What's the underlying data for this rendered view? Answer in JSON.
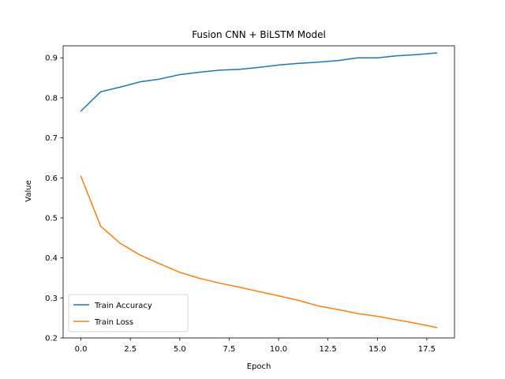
{
  "chart_data": {
    "type": "line",
    "title": "Fusion CNN + BiLSTM Model",
    "xlabel": "Epoch",
    "ylabel": "Value",
    "xlim": [
      -0.9,
      18.9
    ],
    "ylim": [
      0.2,
      0.93
    ],
    "xticks": [
      0.0,
      2.5,
      5.0,
      7.5,
      10.0,
      12.5,
      15.0,
      17.5
    ],
    "xtick_labels": [
      "0.0",
      "2.5",
      "5.0",
      "7.5",
      "10.0",
      "12.5",
      "15.0",
      "17.5"
    ],
    "yticks": [
      0.2,
      0.3,
      0.4,
      0.5,
      0.6,
      0.7,
      0.8,
      0.9
    ],
    "ytick_labels": [
      "0.2",
      "0.3",
      "0.4",
      "0.5",
      "0.6",
      "0.7",
      "0.8",
      "0.9"
    ],
    "grid": false,
    "legend_position": "lower-left",
    "x": [
      0,
      1,
      2,
      3,
      4,
      5,
      6,
      7,
      8,
      9,
      10,
      11,
      12,
      13,
      14,
      15,
      16,
      17,
      18
    ],
    "series": [
      {
        "name": "Train Accuracy",
        "color": "#1f77b4",
        "values": [
          0.767,
          0.815,
          0.827,
          0.84,
          0.847,
          0.858,
          0.864,
          0.869,
          0.871,
          0.876,
          0.882,
          0.886,
          0.889,
          0.893,
          0.9,
          0.9,
          0.905,
          0.908,
          0.912
        ]
      },
      {
        "name": "Train Loss",
        "color": "#ff7f0e",
        "values": [
          0.604,
          0.479,
          0.436,
          0.407,
          0.385,
          0.364,
          0.349,
          0.337,
          0.327,
          0.316,
          0.305,
          0.294,
          0.28,
          0.271,
          0.261,
          0.254,
          0.245,
          0.236,
          0.226
        ]
      }
    ]
  }
}
